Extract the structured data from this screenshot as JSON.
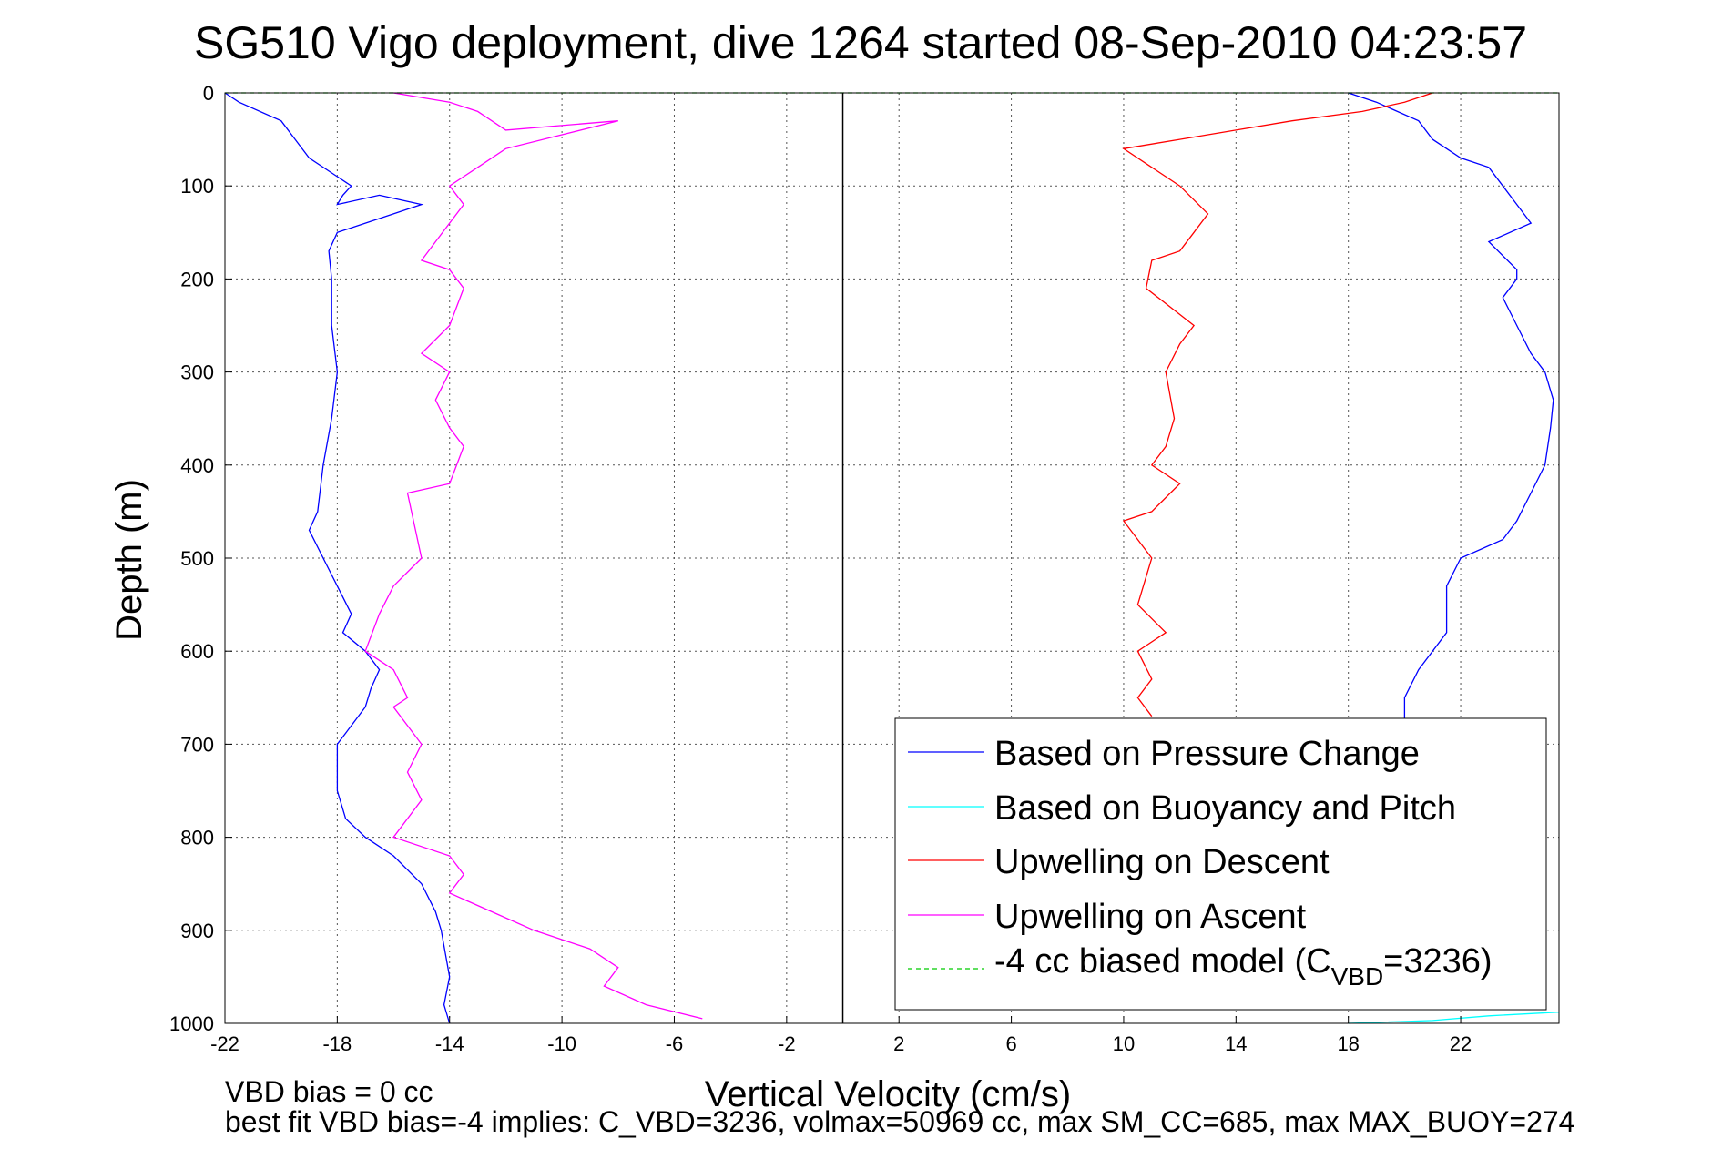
{
  "chart_data": {
    "type": "line",
    "title": "SG510 Vigo deployment, dive 1264 started 08-Sep-2010 04:23:57",
    "xlabel": "Vertical Velocity (cm/s)",
    "ylabel": "Depth (m)",
    "xlim": [
      -22,
      25.5
    ],
    "ylim": [
      0,
      1000
    ],
    "y_reversed": true,
    "grid": true,
    "legend_position": "bottom-right",
    "xticks": [
      -22,
      -18,
      -14,
      -10,
      -6,
      -2,
      2,
      6,
      10,
      14,
      18,
      22
    ],
    "yticks": [
      0,
      100,
      200,
      300,
      400,
      500,
      600,
      700,
      800,
      900,
      1000
    ],
    "zero_line_x": 0,
    "series": [
      {
        "name": "Based on Pressure Change",
        "color": "#0000ff",
        "x": [
          -22,
          -21.5,
          -20,
          -19.5,
          -19,
          -18,
          -17.5,
          -17.8,
          -18,
          -16.5,
          -15,
          -16,
          -17,
          -18,
          -18.3,
          -18.2,
          -18.2,
          -18,
          -18.2,
          -18.5,
          -18.7,
          -19,
          -18.5,
          -18,
          -17.5,
          -17.8,
          -17,
          -16.5,
          -16.8,
          -17,
          -17.5,
          -18,
          -18,
          -17.7,
          -17,
          -16,
          -15,
          -14.5,
          -14.3,
          -14,
          -14.2,
          -14
        ],
        "y": [
          0,
          10,
          30,
          50,
          70,
          90,
          100,
          110,
          120,
          110,
          120,
          130,
          140,
          150,
          170,
          200,
          250,
          300,
          350,
          400,
          450,
          470,
          500,
          530,
          560,
          580,
          600,
          620,
          640,
          660,
          680,
          700,
          750,
          780,
          800,
          820,
          850,
          880,
          900,
          950,
          980,
          1000
        ],
        "x2": [
          18,
          19,
          20.5,
          21,
          22,
          23,
          23.5,
          24,
          24.5,
          23,
          24,
          24,
          23.5,
          24,
          24.5,
          25,
          25.3,
          25.2,
          25,
          24.5,
          24,
          23.5,
          22,
          21.5,
          21.5,
          20.5,
          20,
          20
        ],
        "y2": [
          0,
          10,
          30,
          50,
          70,
          80,
          100,
          120,
          140,
          160,
          190,
          200,
          220,
          250,
          280,
          300,
          330,
          360,
          400,
          430,
          460,
          480,
          500,
          530,
          580,
          620,
          650,
          680
        ]
      },
      {
        "name": "Based on Buoyancy and Pitch",
        "color": "#00ffff",
        "x": [
          18,
          21,
          23,
          25.5
        ],
        "y": [
          1000,
          997,
          992,
          988
        ]
      },
      {
        "name": "Upwelling on Descent",
        "color": "#ff0000",
        "x": [
          21,
          20,
          18.5,
          16,
          14,
          12,
          10,
          11,
          12,
          13,
          12.5,
          12,
          11,
          10.8,
          12.5,
          12,
          11.5,
          11.8,
          11.5,
          11,
          12,
          11,
          10,
          11,
          10.5,
          11.5,
          10.5,
          11,
          10.5,
          11
        ],
        "y": [
          0,
          10,
          20,
          30,
          40,
          50,
          60,
          80,
          100,
          130,
          150,
          170,
          180,
          210,
          250,
          270,
          300,
          350,
          380,
          400,
          420,
          450,
          460,
          500,
          550,
          580,
          600,
          630,
          650,
          670
        ]
      },
      {
        "name": "Upwelling on Ascent",
        "color": "#ff00ff",
        "x": [
          -16,
          -14,
          -13,
          -12,
          -8,
          -12,
          -13,
          -14,
          -13.5,
          -14,
          -14.5,
          -15,
          -14,
          -13.5,
          -14,
          -15,
          -14,
          -14.5,
          -14,
          -13.5,
          -14,
          -15.5,
          -15,
          -16,
          -16.5,
          -17,
          -16,
          -15.5,
          -16,
          -15,
          -15.5,
          -15,
          -16,
          -14,
          -13.5,
          -14,
          -12.5,
          -11,
          -10,
          -9,
          -8,
          -8.5,
          -7,
          -5
        ],
        "y": [
          0,
          10,
          20,
          40,
          30,
          60,
          80,
          100,
          120,
          140,
          160,
          180,
          190,
          210,
          250,
          280,
          300,
          330,
          360,
          380,
          420,
          430,
          500,
          530,
          560,
          600,
          620,
          650,
          660,
          700,
          730,
          760,
          800,
          820,
          840,
          860,
          880,
          900,
          910,
          920,
          940,
          960,
          980,
          995
        ]
      },
      {
        "name": "-4 cc biased model (C_VBD=3236)",
        "color": "#00cc00",
        "x": [
          -22,
          25.5
        ],
        "y": [
          0,
          0
        ]
      }
    ]
  },
  "legend": {
    "items": [
      {
        "label": "Based on Pressure Change",
        "color": "#0000ff"
      },
      {
        "label": "Based on Buoyancy and Pitch",
        "color": "#00ffff"
      },
      {
        "label": "Upwelling on Descent",
        "color": "#ff0000"
      },
      {
        "label": "Upwelling on Ascent",
        "color": "#ff00ff"
      },
      {
        "label_pre": "-4 cc biased model (C",
        "label_sub": "VBD",
        "label_post": "=3236)",
        "color": "#00cc00",
        "dashed": true
      }
    ]
  },
  "footer": {
    "line1": "VBD bias = 0 cc",
    "line2": "best fit VBD bias=-4 implies: C_VBD=3236, volmax=50969 cc, max SM_CC=685, max MAX_BUOY=274"
  }
}
